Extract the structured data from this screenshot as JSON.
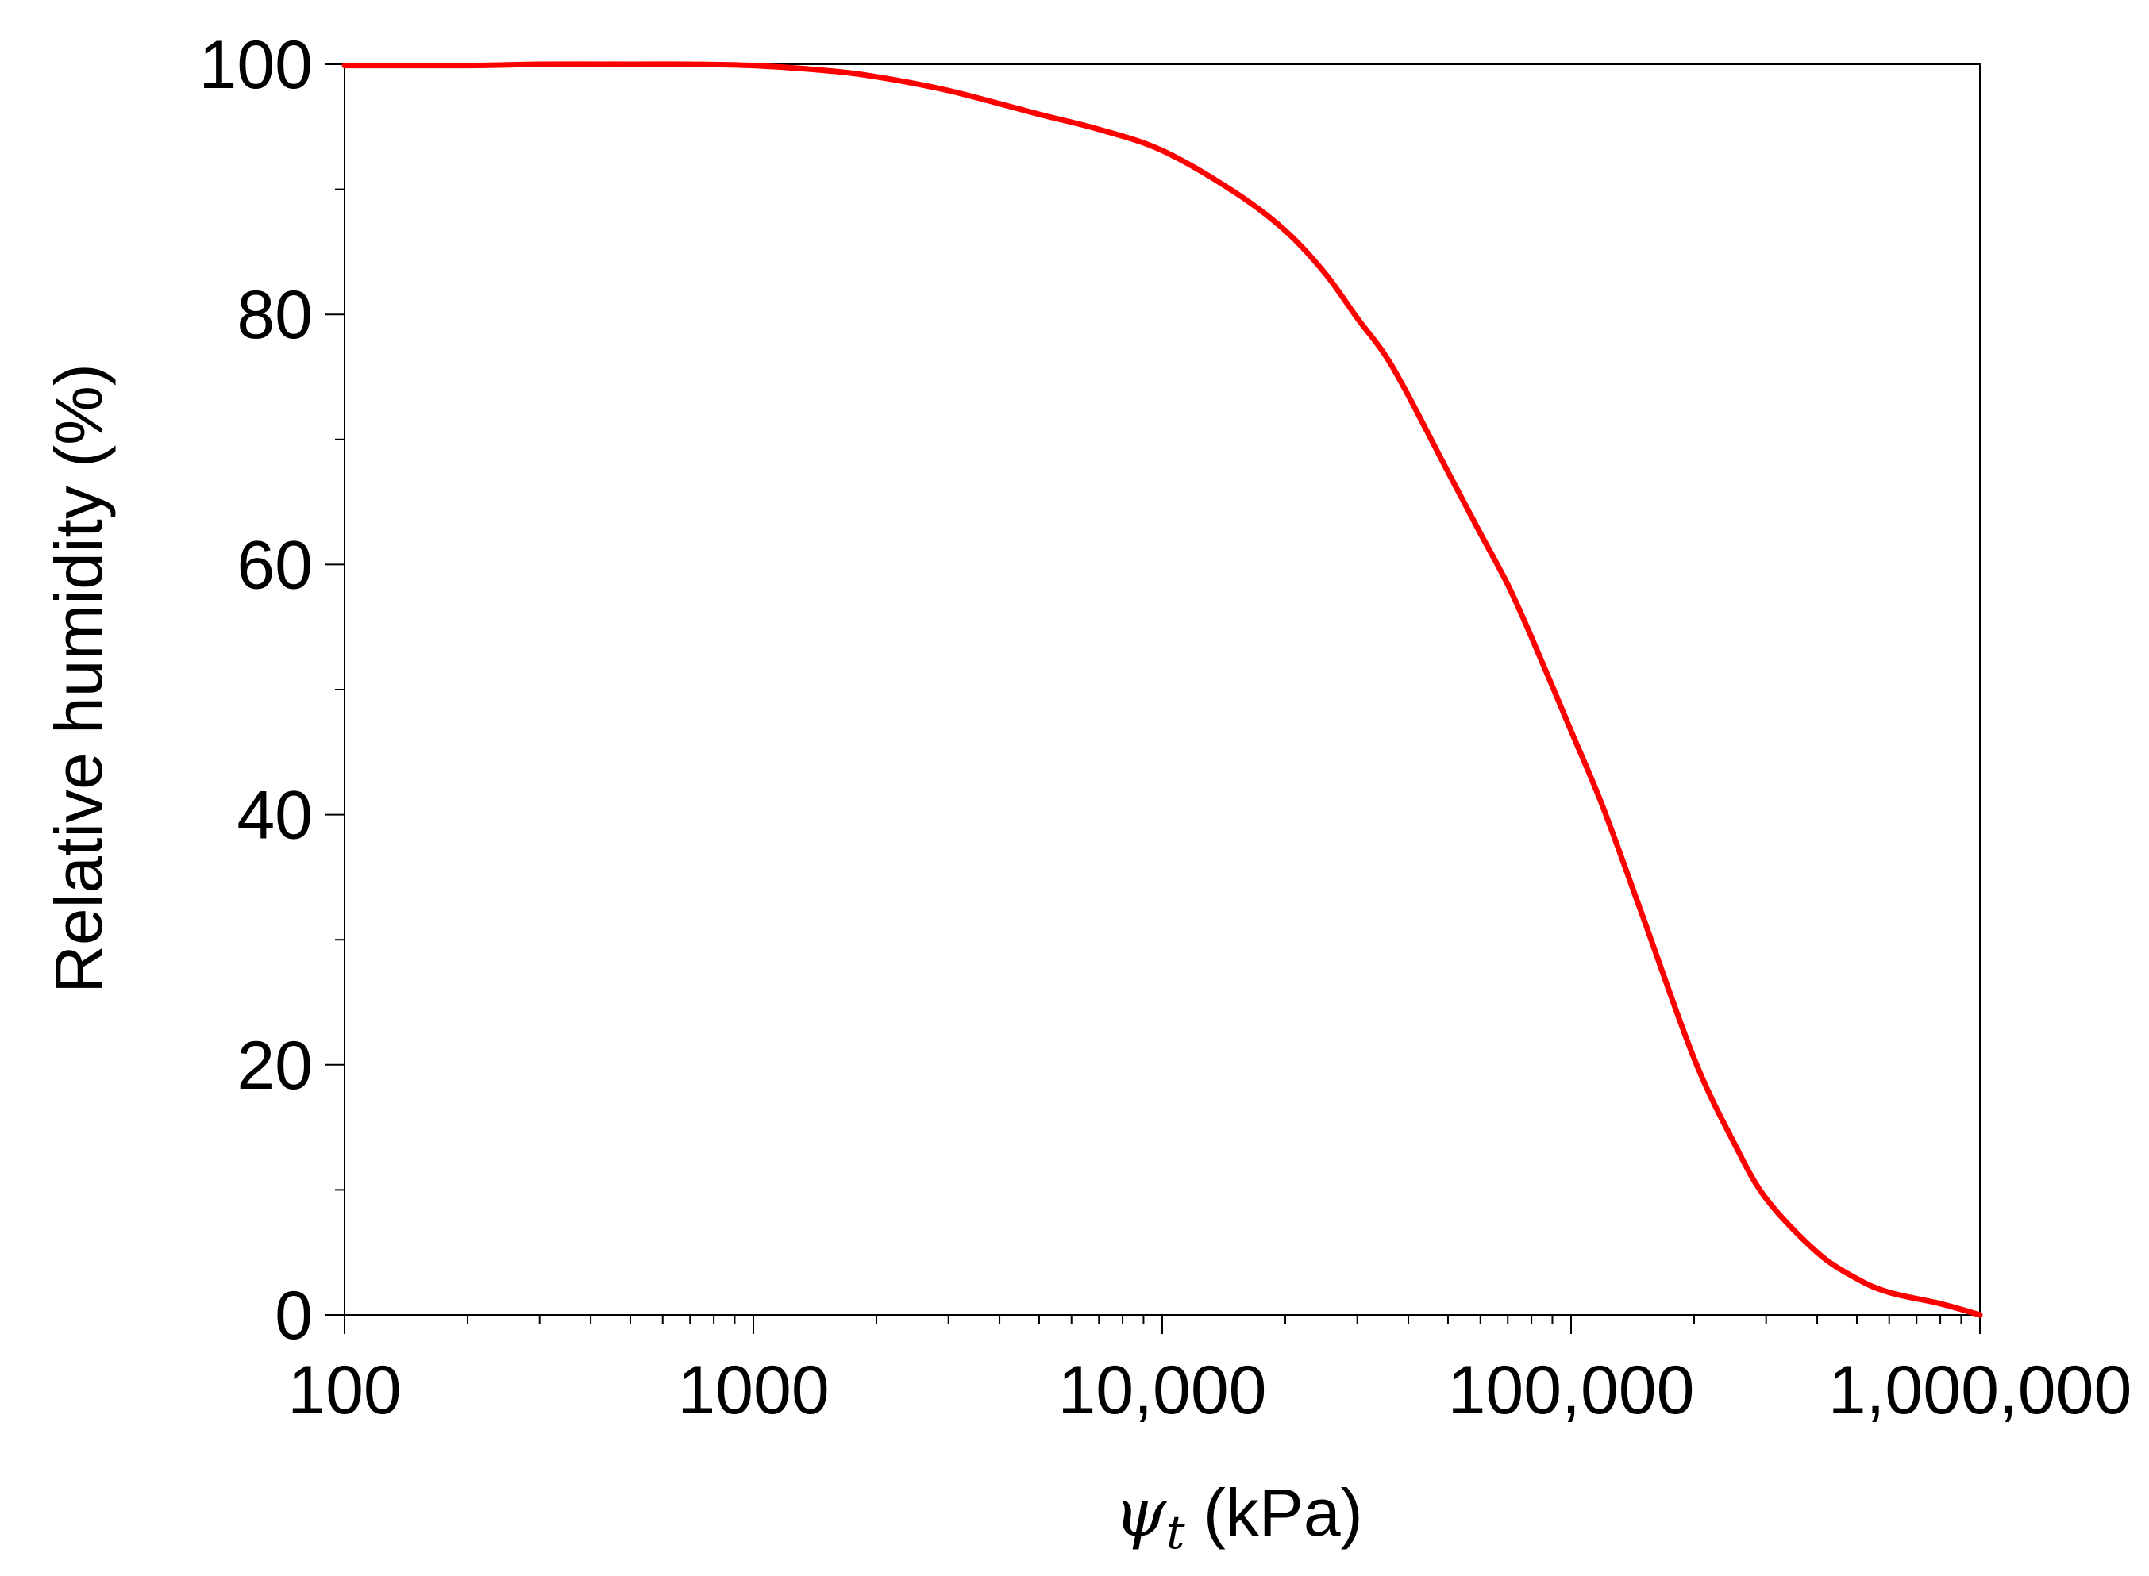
{
  "chart_data": {
    "type": "line",
    "title": "",
    "xlabel": {
      "symbol": "ψ",
      "subscript": "t",
      "unit": " (kPa)"
    },
    "ylabel": "Relative humidity (%)",
    "xscale": "log",
    "xlim": [
      100,
      1000000
    ],
    "ylim": [
      0,
      100
    ],
    "x_ticks": [
      {
        "value": 100,
        "label": "100"
      },
      {
        "value": 1000,
        "label": "1000"
      },
      {
        "value": 10000,
        "label": "10,000"
      },
      {
        "value": 100000,
        "label": "100,000"
      },
      {
        "value": 1000000,
        "label": "1,000,000"
      }
    ],
    "y_ticks": [
      {
        "value": 0,
        "label": "0"
      },
      {
        "value": 20,
        "label": "20"
      },
      {
        "value": 40,
        "label": "40"
      },
      {
        "value": 60,
        "label": "60"
      },
      {
        "value": 80,
        "label": "80"
      },
      {
        "value": 100,
        "label": "100"
      }
    ],
    "y_minor_ticks": [
      10,
      30,
      50,
      70,
      90
    ],
    "grid": false,
    "legend": "none",
    "series": [
      {
        "color": "#ff0000",
        "x": [
          100,
          200,
          300,
          500,
          700,
          1000,
          1500,
          2000,
          3000,
          5000,
          7000,
          10000,
          15000,
          20000,
          25000,
          30000,
          35000,
          40000,
          50000,
          60000,
          70000,
          80000,
          100000,
          120000,
          150000,
          200000,
          250000,
          300000,
          400000,
          500000,
          600000,
          800000,
          1000000
        ],
        "y": [
          99.9,
          99.9,
          100,
          100,
          100,
          99.9,
          99.5,
          99.0,
          97.9,
          96.0,
          94.8,
          93.1,
          89.8,
          86.7,
          83.3,
          79.7,
          76.8,
          73.5,
          67.4,
          62.5,
          58.4,
          54.2,
          46.7,
          40.5,
          31.8,
          20.5,
          13.8,
          9.3,
          5.0,
          2.9,
          1.8,
          0.9,
          0.0
        ]
      }
    ]
  }
}
